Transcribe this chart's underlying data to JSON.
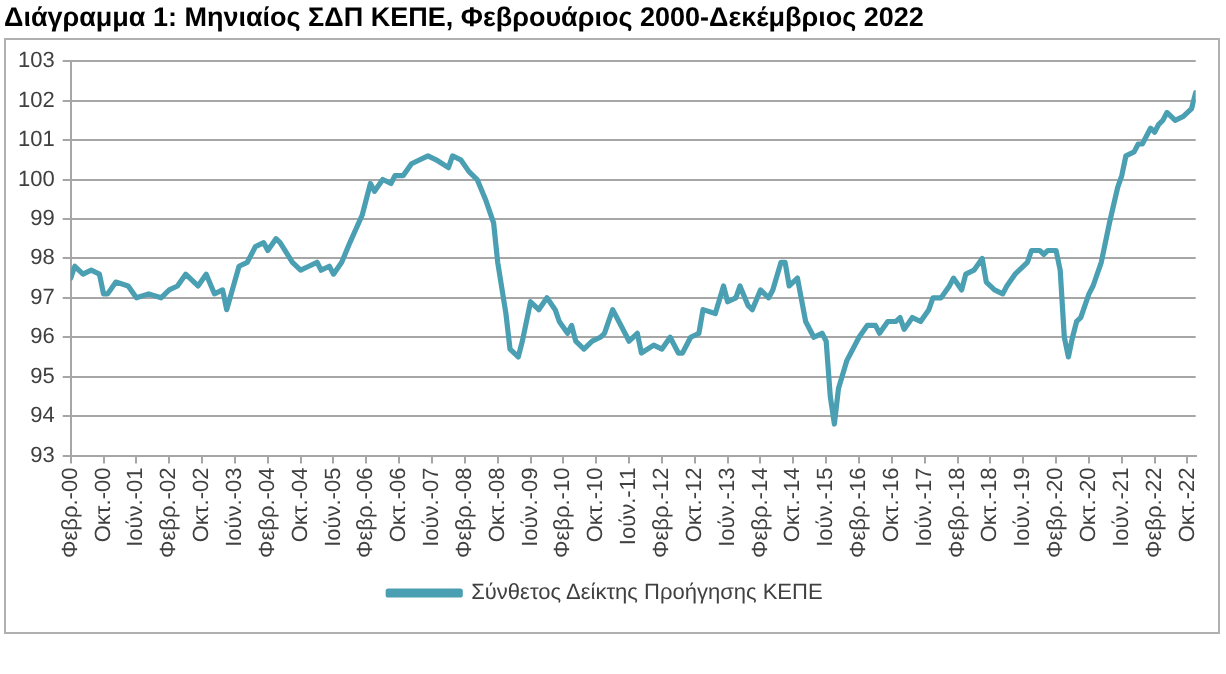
{
  "chart_data": {
    "type": "line",
    "title": "Διάγραμμα 1: Μηνιαίος ΣΔΠ ΚΕΠΕ, Φεβρουάριος 2000-Δεκέμβριος 2022",
    "x": [
      "2000-02",
      "2000-03",
      "2000-05",
      "2000-07",
      "2000-09",
      "2000-10",
      "2000-11",
      "2001-01",
      "2001-04",
      "2001-06",
      "2001-09",
      "2001-12",
      "2002-02",
      "2002-04",
      "2002-06",
      "2002-09",
      "2002-11",
      "2003-01",
      "2003-03",
      "2003-04",
      "2003-07",
      "2003-09",
      "2003-11",
      "2004-01",
      "2004-02",
      "2004-04",
      "2004-05",
      "2004-08",
      "2004-10",
      "2004-12",
      "2005-02",
      "2005-03",
      "2005-05",
      "2005-06",
      "2005-08",
      "2005-10",
      "2006-01",
      "2006-03",
      "2006-04",
      "2006-06",
      "2006-08",
      "2006-09",
      "2006-11",
      "2007-01",
      "2007-05",
      "2007-07",
      "2007-10",
      "2007-11",
      "2008-01",
      "2008-03",
      "2008-05",
      "2008-07",
      "2008-09",
      "2008-10",
      "2008-12",
      "2009-01",
      "2009-03",
      "2009-04",
      "2009-06",
      "2009-08",
      "2009-10",
      "2009-12",
      "2010-01",
      "2010-03",
      "2010-04",
      "2010-05",
      "2010-07",
      "2010-09",
      "2010-11",
      "2010-12",
      "2011-02",
      "2011-03",
      "2011-05",
      "2011-06",
      "2011-08",
      "2011-09",
      "2011-12",
      "2012-02",
      "2012-04",
      "2012-06",
      "2012-07",
      "2012-09",
      "2012-11",
      "2012-12",
      "2013-03",
      "2013-05",
      "2013-06",
      "2013-08",
      "2013-09",
      "2013-11",
      "2013-12",
      "2014-02",
      "2014-04",
      "2014-05",
      "2014-07",
      "2014-08",
      "2014-09",
      "2014-11",
      "2015-01",
      "2015-03",
      "2015-05",
      "2015-06",
      "2015-07",
      "2015-08",
      "2015-09",
      "2015-11",
      "2016-01",
      "2016-02",
      "2016-04",
      "2016-06",
      "2016-07",
      "2016-09",
      "2016-11",
      "2016-12",
      "2017-01",
      "2017-03",
      "2017-05",
      "2017-07",
      "2017-08",
      "2017-10",
      "2017-12",
      "2018-01",
      "2018-03",
      "2018-04",
      "2018-06",
      "2018-08",
      "2018-09",
      "2018-11",
      "2019-01",
      "2019-02",
      "2019-04",
      "2019-07",
      "2019-08",
      "2019-10",
      "2019-11",
      "2019-12",
      "2020-02",
      "2020-03",
      "2020-04",
      "2020-05",
      "2020-06",
      "2020-07",
      "2020-08",
      "2020-10",
      "2020-11",
      "2021-01",
      "2021-03",
      "2021-05",
      "2021-06",
      "2021-07",
      "2021-09",
      "2021-10",
      "2021-11",
      "2022-01",
      "2022-02",
      "2022-03",
      "2022-04",
      "2022-05",
      "2022-06",
      "2022-07",
      "2022-09",
      "2022-11",
      "2022-12"
    ],
    "series": [
      {
        "name": "Σύνθετος Δείκτης Προήγησης ΚΕΠΕ",
        "color": "#4a9fb2",
        "values": [
          97.5,
          97.8,
          97.6,
          97.7,
          97.6,
          97.1,
          97.1,
          97.4,
          97.3,
          97.0,
          97.1,
          97.0,
          97.2,
          97.3,
          97.6,
          97.3,
          97.6,
          97.1,
          97.2,
          96.7,
          97.8,
          97.9,
          98.3,
          98.4,
          98.2,
          98.5,
          98.4,
          97.9,
          97.7,
          97.8,
          97.9,
          97.7,
          97.8,
          97.6,
          97.9,
          98.4,
          99.1,
          99.9,
          99.7,
          100.0,
          99.9,
          100.1,
          100.1,
          100.4,
          100.6,
          100.5,
          100.3,
          100.6,
          100.5,
          100.2,
          100.0,
          99.5,
          98.9,
          97.9,
          96.6,
          95.7,
          95.5,
          95.9,
          96.9,
          96.7,
          97.0,
          96.7,
          96.4,
          96.1,
          96.3,
          95.9,
          95.7,
          95.9,
          96.0,
          96.1,
          96.7,
          96.5,
          96.1,
          95.9,
          96.1,
          95.6,
          95.8,
          95.7,
          96.0,
          95.6,
          95.6,
          96.0,
          96.1,
          96.7,
          96.6,
          97.3,
          96.9,
          97.0,
          97.3,
          96.8,
          96.7,
          97.2,
          97.0,
          97.2,
          97.9,
          97.9,
          97.3,
          97.5,
          96.4,
          96.0,
          96.1,
          95.9,
          94.5,
          93.8,
          94.7,
          95.4,
          95.8,
          96.0,
          96.3,
          96.3,
          96.1,
          96.4,
          96.4,
          96.5,
          96.2,
          96.5,
          96.4,
          96.7,
          97.0,
          97.0,
          97.3,
          97.5,
          97.2,
          97.6,
          97.7,
          98.0,
          97.4,
          97.2,
          97.1,
          97.3,
          97.6,
          97.9,
          98.2,
          98.2,
          98.1,
          98.2,
          98.2,
          97.7,
          96.0,
          95.5,
          96.0,
          96.4,
          96.5,
          97.1,
          97.3,
          97.9,
          98.9,
          99.8,
          100.1,
          100.6,
          100.7,
          100.9,
          100.9,
          101.3,
          101.2,
          101.4,
          101.5,
          101.7,
          101.6,
          101.5,
          101.6,
          101.8,
          102.2
        ]
      }
    ],
    "xlim": [
      "2000-02",
      "2022-12"
    ],
    "xticks": [
      {
        "value": "2000-02",
        "label": "Φεβρ.-00"
      },
      {
        "value": "2000-10",
        "label": "Οκτ.-00"
      },
      {
        "value": "2001-06",
        "label": "Ιούν.-01"
      },
      {
        "value": "2002-02",
        "label": "Φεβρ.-02"
      },
      {
        "value": "2002-10",
        "label": "Οκτ.-02"
      },
      {
        "value": "2003-06",
        "label": "Ιούν.-03"
      },
      {
        "value": "2004-02",
        "label": "Φεβρ.-04"
      },
      {
        "value": "2004-10",
        "label": "Οκτ.-04"
      },
      {
        "value": "2005-06",
        "label": "Ιούν.-05"
      },
      {
        "value": "2006-02",
        "label": "Φεβρ.-06"
      },
      {
        "value": "2006-10",
        "label": "Οκτ.-06"
      },
      {
        "value": "2007-06",
        "label": "Ιούν.-07"
      },
      {
        "value": "2008-02",
        "label": "Φεβρ.-08"
      },
      {
        "value": "2008-10",
        "label": "Οκτ.-08"
      },
      {
        "value": "2009-06",
        "label": "Ιούν.-09"
      },
      {
        "value": "2010-02",
        "label": "Φεβρ.-10"
      },
      {
        "value": "2010-10",
        "label": "Οκτ.-10"
      },
      {
        "value": "2011-06",
        "label": "Ιούν.-11"
      },
      {
        "value": "2012-02",
        "label": "Φεβρ.-12"
      },
      {
        "value": "2012-10",
        "label": "Οκτ.-12"
      },
      {
        "value": "2013-06",
        "label": "Ιούν.-13"
      },
      {
        "value": "2014-02",
        "label": "Φεβρ.-14"
      },
      {
        "value": "2014-10",
        "label": "Οκτ.-14"
      },
      {
        "value": "2015-06",
        "label": "Ιούν.-15"
      },
      {
        "value": "2016-02",
        "label": "Φεβρ.-16"
      },
      {
        "value": "2016-10",
        "label": "Οκτ.-16"
      },
      {
        "value": "2017-06",
        "label": "Ιούν.-17"
      },
      {
        "value": "2018-02",
        "label": "Φεβρ.-18"
      },
      {
        "value": "2018-10",
        "label": "Οκτ.-18"
      },
      {
        "value": "2019-06",
        "label": "Ιούν.-19"
      },
      {
        "value": "2020-02",
        "label": "Φεβρ.-20"
      },
      {
        "value": "2020-10",
        "label": "Οκτ.-20"
      },
      {
        "value": "2021-06",
        "label": "Ιούν.-21"
      },
      {
        "value": "2022-02",
        "label": "Φεβρ.-22"
      },
      {
        "value": "2022-10",
        "label": "Οκτ.-22"
      }
    ],
    "ylim": [
      93,
      103
    ],
    "yticks": [
      93,
      94,
      95,
      96,
      97,
      98,
      99,
      100,
      101,
      102,
      103
    ],
    "grid": "y",
    "legend": "bottom",
    "marker": "none"
  }
}
